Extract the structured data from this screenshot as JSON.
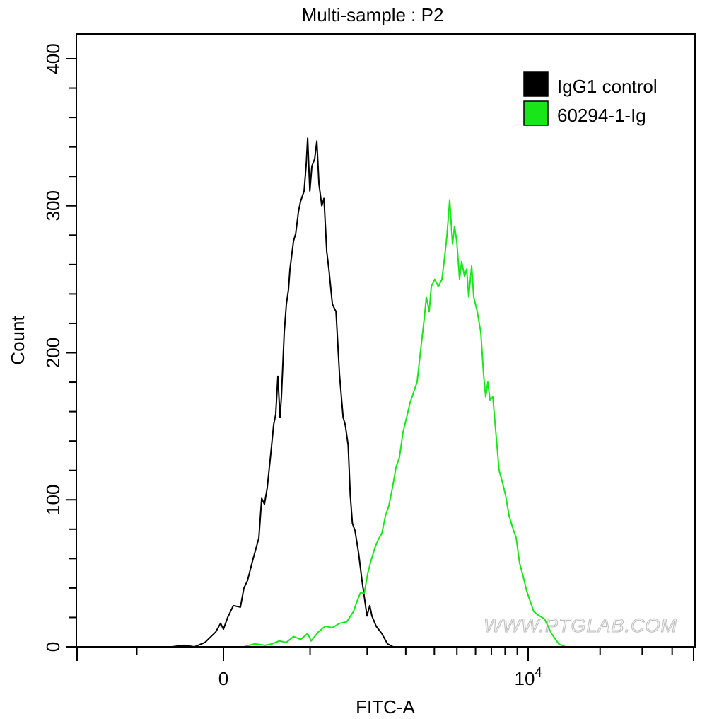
{
  "chart_data": {
    "type": "line",
    "title": "Multi-sample : P2",
    "xlabel": "FITC-A",
    "ylabel": "Count",
    "x_scale": "biexponential",
    "xlim": [
      -2050,
      49000
    ],
    "ylim": [
      0,
      420
    ],
    "grid": false,
    "legend_position": "top-right",
    "x_major_ticks": [
      {
        "value": 0,
        "label": "0"
      },
      {
        "value": 10000,
        "label_base": "10",
        "label_exp": "4"
      }
    ],
    "x_minor_ticks": [
      -1000,
      1000,
      2000,
      3000,
      4000,
      5000,
      6000,
      7000,
      8000,
      9000,
      20000,
      30000,
      40000
    ],
    "y_major_ticks": [
      0,
      100,
      200,
      300,
      400
    ],
    "y_tick_labels": [
      "0",
      "100",
      "200",
      "300",
      "400"
    ],
    "y_minor_step": 20,
    "series": [
      {
        "name": "IgG1 control",
        "color": "#000000",
        "x": [
          -554,
          -418,
          -303,
          -191,
          -80,
          -29,
          0,
          44,
          102,
          176,
          213,
          250,
          310,
          372,
          403,
          434,
          465,
          506,
          538,
          562,
          587,
          612,
          629,
          663,
          689,
          715,
          734,
          778,
          806,
          842,
          870,
          918,
          947,
          966,
          997,
          1026,
          1066,
          1098,
          1129,
          1172,
          1205,
          1249,
          1282,
          1340,
          1400,
          1461,
          1525,
          1563,
          1616,
          1656,
          1697,
          1748,
          1819,
          1890,
          1951,
          1996,
          2057,
          2106,
          2203,
          2340,
          2484,
          2633
        ],
        "y": [
          0,
          1,
          0,
          3,
          10,
          16,
          12,
          20,
          28,
          27,
          40,
          45,
          60,
          74,
          101,
          97,
          108,
          132,
          151,
          158,
          184,
          156,
          170,
          214,
          233,
          243,
          257,
          276,
          281,
          296,
          303,
          310,
          329,
          346,
          310,
          327,
          332,
          344,
          315,
          300,
          305,
          269,
          257,
          233,
          228,
          185,
          156,
          151,
          137,
          103,
          84,
          79,
          64,
          45,
          31,
          21,
          28,
          21,
          14,
          9,
          2,
          0
        ]
      },
      {
        "name": "60294-1-Ig",
        "color": "#19e619",
        "x": [
          213,
          326,
          442,
          522,
          604,
          689,
          778,
          870,
          966,
          1016,
          1118,
          1225,
          1340,
          1461,
          1589,
          1719,
          1788,
          1861,
          1935,
          2012,
          2090,
          2171,
          2254,
          2340,
          2430,
          2521,
          2616,
          2714,
          2814,
          2918,
          3026,
          3136,
          3248,
          3366,
          3489,
          3615,
          3694,
          3800,
          3880,
          4018,
          4162,
          4311,
          4406,
          4529,
          4657,
          4788,
          4887,
          4993,
          5132,
          5238,
          5390,
          5501,
          5614,
          5776,
          5895,
          6102,
          6317,
          6492,
          6625,
          6767,
          6906,
          7097,
          7345,
          7549,
          7764,
          8036,
          8316,
          8605,
          8905,
          9206,
          9527,
          9859,
          10202,
          10556,
          10923,
          11696,
          12522,
          13413,
          14357,
          15365
        ],
        "y": [
          0,
          2,
          1,
          2,
          4,
          3,
          7,
          5,
          9,
          4,
          10,
          14,
          13,
          16,
          17,
          24,
          31,
          37,
          36,
          50,
          59,
          67,
          73,
          77,
          89,
          96,
          108,
          122,
          129,
          146,
          156,
          166,
          173,
          180,
          202,
          223,
          238,
          228,
          245,
          250,
          245,
          250,
          262,
          279,
          304,
          274,
          286,
          276,
          250,
          262,
          252,
          257,
          238,
          259,
          238,
          228,
          214,
          185,
          170,
          180,
          168,
          170,
          142,
          120,
          113,
          103,
          89,
          81,
          74,
          57,
          48,
          38,
          31,
          24,
          22,
          19,
          9,
          2,
          0,
          0
        ]
      }
    ],
    "watermark": "WWW.PTGLAB.COM"
  }
}
